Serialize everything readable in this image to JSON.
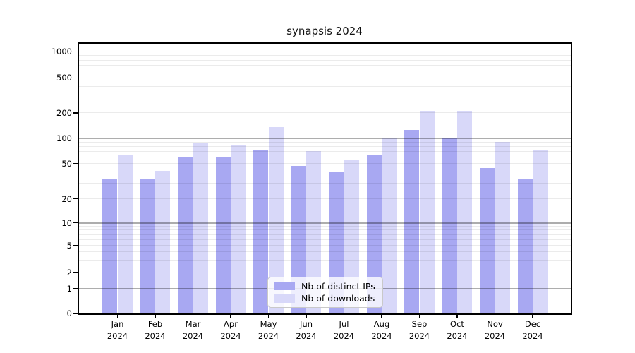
{
  "chart_data": {
    "type": "bar",
    "title": "synapsis 2024",
    "categories": [
      {
        "month": "Jan",
        "year": "2024"
      },
      {
        "month": "Feb",
        "year": "2024"
      },
      {
        "month": "Mar",
        "year": "2024"
      },
      {
        "month": "Apr",
        "year": "2024"
      },
      {
        "month": "May",
        "year": "2024"
      },
      {
        "month": "Jun",
        "year": "2024"
      },
      {
        "month": "Jul",
        "year": "2024"
      },
      {
        "month": "Aug",
        "year": "2024"
      },
      {
        "month": "Sep",
        "year": "2024"
      },
      {
        "month": "Oct",
        "year": "2024"
      },
      {
        "month": "Nov",
        "year": "2024"
      },
      {
        "month": "Dec",
        "year": "2024"
      }
    ],
    "series": [
      {
        "name": "Nb of distinct IPs",
        "key": "distinct-ips",
        "color": "#a8a8f2",
        "values": [
          34,
          33,
          59,
          59,
          73,
          47,
          40,
          62,
          125,
          101,
          44,
          34
        ]
      },
      {
        "name": "Nb of downloads",
        "key": "downloads",
        "color": "#d8d8f9",
        "values": [
          64,
          41,
          87,
          83,
          136,
          70,
          56,
          99,
          212,
          212,
          90,
          73
        ]
      }
    ],
    "y_axis": {
      "scale": "symlog",
      "ticks": [
        0,
        1,
        2,
        5,
        10,
        20,
        50,
        100,
        200,
        500,
        1000
      ],
      "range": [
        0,
        1265
      ],
      "major_gridlines_at": [
        1,
        10,
        100,
        1000
      ],
      "minor_gridlines": "log multiples 2-9 of each decade"
    },
    "xlabel": "",
    "ylabel": "",
    "grid": true,
    "legend_position": "bottom-center-inside"
  }
}
